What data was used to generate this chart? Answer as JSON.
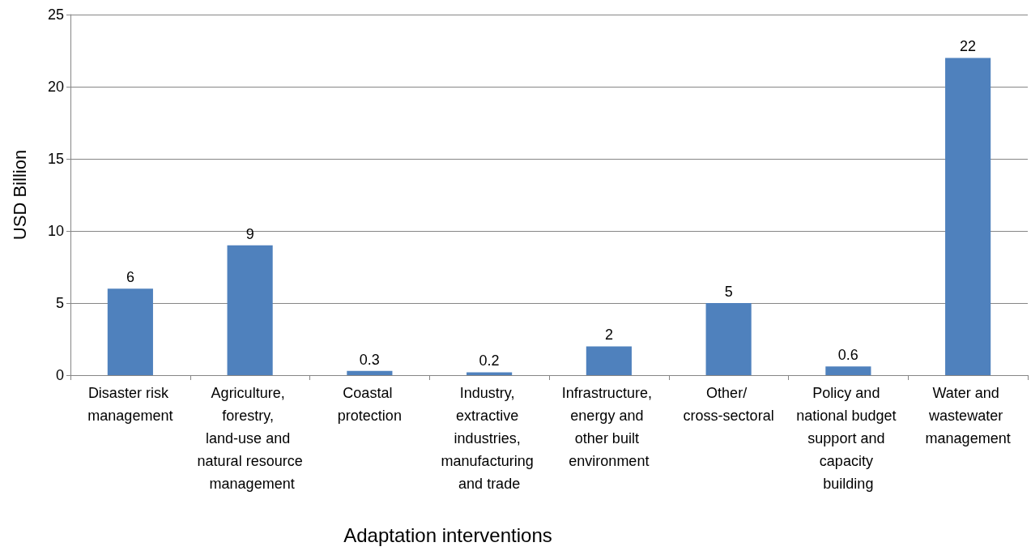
{
  "chart_data": {
    "type": "bar",
    "xlabel": "Adaptation interventions",
    "ylabel": "USD Billion",
    "categories": [
      "Disaster risk management",
      "Agriculture, forestry, land-use and natural resource management",
      "Coastal protection",
      "Industry, extractive industries, manufacturing and trade",
      "Infrastructure, energy and other built environment",
      "Other/ cross-sectoral",
      "Policy and national budget support and capacity building",
      "Water and wastewater management"
    ],
    "values": [
      6,
      9,
      0.3,
      0.2,
      2,
      5,
      0.6,
      22
    ],
    "color": "#4f81bd",
    "ylim": [
      0,
      25
    ],
    "yticks": [
      0,
      5,
      10,
      15,
      20,
      25
    ],
    "grid": "y",
    "data_labels": true
  }
}
